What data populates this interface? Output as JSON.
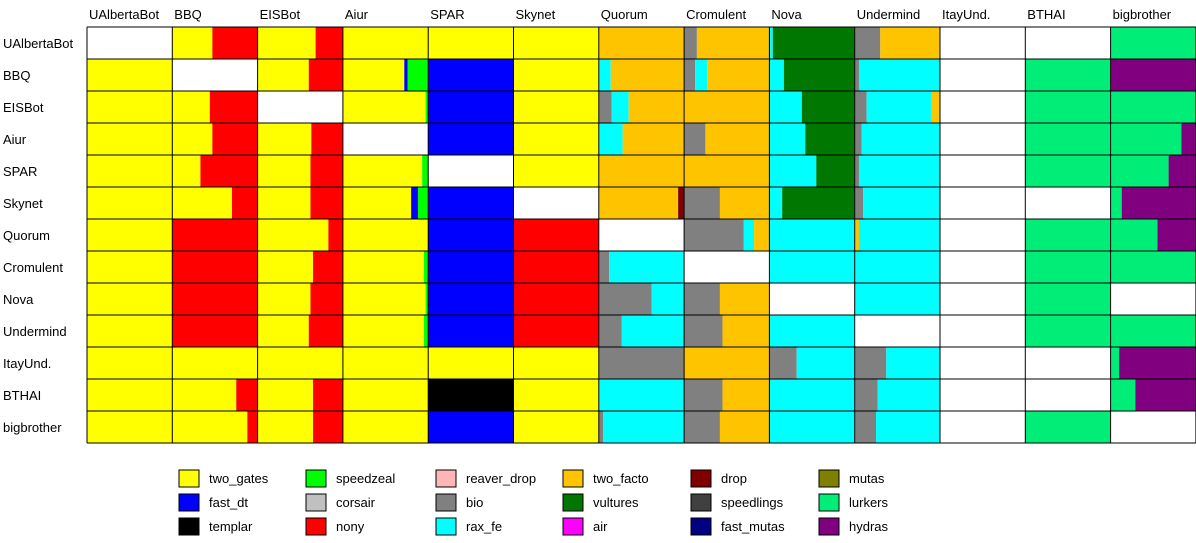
{
  "chart_data": {
    "type": "heatmap",
    "title": "",
    "subtitle": "",
    "xlabel": "",
    "ylabel": "",
    "grid": false,
    "legend_placement": "bottom",
    "bots": [
      "UAlbertaBot",
      "BBQ",
      "EISBot",
      "Aiur",
      "SPAR",
      "Skynet",
      "Quorum",
      "Cromulent",
      "Nova",
      "Undermind",
      "ItayUnd.",
      "BTHAI",
      "bigbrother"
    ],
    "strategies": [
      {
        "name": "two_gates",
        "color": "#ffff00"
      },
      {
        "name": "fast_dt",
        "color": "#0000ff"
      },
      {
        "name": "templar",
        "color": "#000000"
      },
      {
        "name": "speedzeal",
        "color": "#00ff00"
      },
      {
        "name": "corsair",
        "color": "#c0c0c0"
      },
      {
        "name": "nony",
        "color": "#ff0000"
      },
      {
        "name": "reaver_drop",
        "color": "#ffb6b6"
      },
      {
        "name": "bio",
        "color": "#808080"
      },
      {
        "name": "rax_fe",
        "color": "#00ffff"
      },
      {
        "name": "two_facto",
        "color": "#ffc400"
      },
      {
        "name": "vultures",
        "color": "#007800"
      },
      {
        "name": "air",
        "color": "#ff00ff"
      },
      {
        "name": "drop",
        "color": "#800000"
      },
      {
        "name": "speedlings",
        "color": "#404040"
      },
      {
        "name": "fast_mutas",
        "color": "#000080"
      },
      {
        "name": "mutas",
        "color": "#808000"
      },
      {
        "name": "lurkers",
        "color": "#00ee77"
      },
      {
        "name": "hydras",
        "color": "#800080"
      }
    ],
    "cells": {
      "UAlbertaBot": [
        null,
        [
          [
            "two_gates",
            0.47
          ],
          [
            "nony",
            0.53
          ]
        ],
        [
          [
            "two_gates",
            0.68
          ],
          [
            "nony",
            0.32
          ]
        ],
        [
          [
            "two_gates",
            1
          ]
        ],
        [
          [
            "two_gates",
            1
          ]
        ],
        [
          [
            "two_gates",
            1
          ]
        ],
        [
          [
            "two_facto",
            1
          ]
        ],
        [
          [
            "bio",
            0.15
          ],
          [
            "two_facto",
            0.85
          ]
        ],
        [
          [
            "rax_fe",
            0.04
          ],
          [
            "vultures",
            0.96
          ]
        ],
        [
          [
            "bio",
            0.3
          ],
          [
            "two_facto",
            0.7
          ]
        ],
        null,
        null,
        [
          [
            "lurkers",
            1
          ]
        ]
      ],
      "BBQ": [
        [
          [
            "two_gates",
            1
          ]
        ],
        null,
        [
          [
            "two_gates",
            0.6
          ],
          [
            "nony",
            0.4
          ]
        ],
        [
          [
            "two_gates",
            0.72
          ],
          [
            "fast_dt",
            0.04
          ],
          [
            "speedzeal",
            0.24
          ]
        ],
        [
          [
            "fast_dt",
            1
          ]
        ],
        [
          [
            "two_gates",
            1
          ]
        ],
        [
          [
            "rax_fe",
            0.14
          ],
          [
            "two_facto",
            0.86
          ]
        ],
        [
          [
            "bio",
            0.13
          ],
          [
            "rax_fe",
            0.14
          ],
          [
            "two_facto",
            0.73
          ]
        ],
        [
          [
            "rax_fe",
            0.17
          ],
          [
            "vultures",
            0.83
          ]
        ],
        [
          [
            "bio",
            0.05
          ],
          [
            "rax_fe",
            0.95
          ]
        ],
        null,
        [
          [
            "lurkers",
            1
          ]
        ],
        [
          [
            "hydras",
            1
          ]
        ]
      ],
      "EISBot": [
        [
          [
            "two_gates",
            1
          ]
        ],
        [
          [
            "two_gates",
            0.44
          ],
          [
            "nony",
            0.56
          ]
        ],
        null,
        [
          [
            "two_gates",
            0.97
          ],
          [
            "speedzeal",
            0.03
          ]
        ],
        [
          [
            "fast_dt",
            1
          ]
        ],
        [
          [
            "two_gates",
            1
          ]
        ],
        [
          [
            "bio",
            0.15
          ],
          [
            "rax_fe",
            0.2
          ],
          [
            "two_facto",
            0.65
          ]
        ],
        [
          [
            "two_facto",
            1
          ]
        ],
        [
          [
            "rax_fe",
            0.38
          ],
          [
            "vultures",
            0.62
          ]
        ],
        [
          [
            "bio",
            0.14
          ],
          [
            "rax_fe",
            0.76
          ],
          [
            "two_facto",
            0.1
          ]
        ],
        null,
        [
          [
            "lurkers",
            1
          ]
        ],
        [
          [
            "lurkers",
            1
          ]
        ]
      ],
      "Aiur": [
        [
          [
            "two_gates",
            1
          ]
        ],
        [
          [
            "two_gates",
            0.47
          ],
          [
            "nony",
            0.53
          ]
        ],
        [
          [
            "two_gates",
            0.63
          ],
          [
            "nony",
            0.37
          ]
        ],
        null,
        [
          [
            "fast_dt",
            1
          ]
        ],
        [
          [
            "two_gates",
            1
          ]
        ],
        [
          [
            "rax_fe",
            0.28
          ],
          [
            "two_facto",
            0.72
          ]
        ],
        [
          [
            "bio",
            0.25
          ],
          [
            "two_facto",
            0.75
          ]
        ],
        [
          [
            "rax_fe",
            0.42
          ],
          [
            "vultures",
            0.58
          ]
        ],
        [
          [
            "bio",
            0.08
          ],
          [
            "rax_fe",
            0.92
          ]
        ],
        null,
        [
          [
            "lurkers",
            1
          ]
        ],
        [
          [
            "lurkers",
            0.83
          ],
          [
            "hydras",
            0.17
          ]
        ]
      ],
      "SPAR": [
        [
          [
            "two_gates",
            1
          ]
        ],
        [
          [
            "two_gates",
            0.33
          ],
          [
            "nony",
            0.67
          ]
        ],
        [
          [
            "two_gates",
            0.62
          ],
          [
            "nony",
            0.38
          ]
        ],
        [
          [
            "two_gates",
            0.93
          ],
          [
            "speedzeal",
            0.07
          ]
        ],
        null,
        [
          [
            "two_gates",
            1
          ]
        ],
        [
          [
            "two_facto",
            1
          ]
        ],
        [
          [
            "two_facto",
            1
          ]
        ],
        [
          [
            "rax_fe",
            0.55
          ],
          [
            "vultures",
            0.45
          ]
        ],
        [
          [
            "bio",
            0.05
          ],
          [
            "rax_fe",
            0.95
          ]
        ],
        null,
        [
          [
            "lurkers",
            1
          ]
        ],
        [
          [
            "lurkers",
            0.68
          ],
          [
            "hydras",
            0.32
          ]
        ]
      ],
      "Skynet": [
        [
          [
            "two_gates",
            1
          ]
        ],
        [
          [
            "two_gates",
            0.7
          ],
          [
            "nony",
            0.3
          ]
        ],
        [
          [
            "two_gates",
            0.62
          ],
          [
            "nony",
            0.38
          ]
        ],
        [
          [
            "two_gates",
            0.8
          ],
          [
            "fast_dt",
            0.08
          ],
          [
            "speedzeal",
            0.12
          ]
        ],
        [
          [
            "fast_dt",
            1
          ]
        ],
        null,
        [
          [
            "two_facto",
            0.93
          ],
          [
            "drop",
            0.07
          ]
        ],
        [
          [
            "bio",
            0.42
          ],
          [
            "two_facto",
            0.58
          ]
        ],
        [
          [
            "rax_fe",
            0.15
          ],
          [
            "vultures",
            0.85
          ]
        ],
        [
          [
            "bio",
            0.1
          ],
          [
            "rax_fe",
            0.9
          ]
        ],
        null,
        null,
        [
          [
            "lurkers",
            0.13
          ],
          [
            "hydras",
            0.87
          ]
        ]
      ],
      "Quorum": [
        [
          [
            "two_gates",
            1
          ]
        ],
        [
          [
            "nony",
            1
          ]
        ],
        [
          [
            "two_gates",
            0.83
          ],
          [
            "nony",
            0.17
          ]
        ],
        [
          [
            "two_gates",
            1
          ]
        ],
        [
          [
            "fast_dt",
            1
          ]
        ],
        [
          [
            "nony",
            1
          ]
        ],
        null,
        [
          [
            "bio",
            0.7
          ],
          [
            "rax_fe",
            0.12
          ],
          [
            "two_facto",
            0.18
          ]
        ],
        [
          [
            "rax_fe",
            1
          ]
        ],
        [
          [
            "two_facto",
            0.05
          ],
          [
            "rax_fe",
            0.95
          ]
        ],
        null,
        [
          [
            "lurkers",
            1
          ]
        ],
        [
          [
            "lurkers",
            0.55
          ],
          [
            "hydras",
            0.45
          ]
        ]
      ],
      "Cromulent": [
        [
          [
            "two_gates",
            1
          ]
        ],
        [
          [
            "nony",
            1
          ]
        ],
        [
          [
            "two_gates",
            0.65
          ],
          [
            "nony",
            0.35
          ]
        ],
        [
          [
            "two_gates",
            0.95
          ],
          [
            "speedzeal",
            0.05
          ]
        ],
        [
          [
            "fast_dt",
            1
          ]
        ],
        [
          [
            "nony",
            1
          ]
        ],
        [
          [
            "bio",
            0.12
          ],
          [
            "rax_fe",
            0.88
          ]
        ],
        null,
        [
          [
            "rax_fe",
            1
          ]
        ],
        [
          [
            "rax_fe",
            1
          ]
        ],
        null,
        [
          [
            "lurkers",
            1
          ]
        ],
        [
          [
            "lurkers",
            1
          ]
        ]
      ],
      "Nova": [
        [
          [
            "two_gates",
            1
          ]
        ],
        [
          [
            "nony",
            1
          ]
        ],
        [
          [
            "two_gates",
            0.62
          ],
          [
            "nony",
            0.38
          ]
        ],
        [
          [
            "two_gates",
            0.97
          ],
          [
            "speedzeal",
            0.03
          ]
        ],
        [
          [
            "fast_dt",
            1
          ]
        ],
        [
          [
            "nony",
            1
          ]
        ],
        [
          [
            "bio",
            0.62
          ],
          [
            "rax_fe",
            0.38
          ]
        ],
        [
          [
            "bio",
            0.42
          ],
          [
            "two_facto",
            0.58
          ]
        ],
        null,
        [
          [
            "rax_fe",
            1
          ]
        ],
        null,
        [
          [
            "lurkers",
            1
          ]
        ],
        null
      ],
      "Undermind": [
        [
          [
            "two_gates",
            1
          ]
        ],
        [
          [
            "nony",
            1
          ]
        ],
        [
          [
            "two_gates",
            0.6
          ],
          [
            "nony",
            0.4
          ]
        ],
        [
          [
            "two_gates",
            0.95
          ],
          [
            "speedzeal",
            0.05
          ]
        ],
        [
          [
            "fast_dt",
            1
          ]
        ],
        [
          [
            "nony",
            1
          ]
        ],
        [
          [
            "bio",
            0.27
          ],
          [
            "rax_fe",
            0.73
          ]
        ],
        [
          [
            "bio",
            0.45
          ],
          [
            "two_facto",
            0.55
          ]
        ],
        [
          [
            "rax_fe",
            1
          ]
        ],
        null,
        null,
        [
          [
            "lurkers",
            1
          ]
        ],
        [
          [
            "lurkers",
            1
          ]
        ]
      ],
      "ItayUnd.": [
        [
          [
            "two_gates",
            1
          ]
        ],
        [
          [
            "two_gates",
            1
          ]
        ],
        [
          [
            "two_gates",
            1
          ]
        ],
        [
          [
            "two_gates",
            1
          ]
        ],
        [
          [
            "two_gates",
            1
          ]
        ],
        [
          [
            "two_gates",
            1
          ]
        ],
        [
          [
            "bio",
            1
          ]
        ],
        [
          [
            "two_facto",
            1
          ]
        ],
        [
          [
            "bio",
            0.32
          ],
          [
            "rax_fe",
            0.68
          ]
        ],
        [
          [
            "bio",
            0.37
          ],
          [
            "rax_fe",
            0.63
          ]
        ],
        null,
        null,
        [
          [
            "lurkers",
            0.1
          ],
          [
            "hydras",
            0.9
          ]
        ]
      ],
      "BTHAI": [
        [
          [
            "two_gates",
            1
          ]
        ],
        [
          [
            "two_gates",
            0.75
          ],
          [
            "nony",
            0.25
          ]
        ],
        [
          [
            "two_gates",
            0.65
          ],
          [
            "nony",
            0.35
          ]
        ],
        [
          [
            "two_gates",
            1
          ]
        ],
        [
          [
            "templar",
            1
          ]
        ],
        [
          [
            "two_gates",
            1
          ]
        ],
        [
          [
            "rax_fe",
            1
          ]
        ],
        [
          [
            "bio",
            0.45
          ],
          [
            "two_facto",
            0.55
          ]
        ],
        [
          [
            "rax_fe",
            1
          ]
        ],
        [
          [
            "bio",
            0.27
          ],
          [
            "rax_fe",
            0.73
          ]
        ],
        null,
        null,
        [
          [
            "lurkers",
            0.29
          ],
          [
            "hydras",
            0.71
          ]
        ]
      ],
      "bigbrother": [
        [
          [
            "two_gates",
            1
          ]
        ],
        [
          [
            "two_gates",
            0.88
          ],
          [
            "nony",
            0.12
          ]
        ],
        [
          [
            "two_gates",
            0.65
          ],
          [
            "nony",
            0.35
          ]
        ],
        [
          [
            "two_gates",
            1
          ]
        ],
        [
          [
            "fast_dt",
            1
          ]
        ],
        [
          [
            "two_gates",
            1
          ]
        ],
        [
          [
            "bio",
            0.05
          ],
          [
            "rax_fe",
            0.95
          ]
        ],
        [
          [
            "bio",
            0.42
          ],
          [
            "two_facto",
            0.58
          ]
        ],
        [
          [
            "rax_fe",
            1
          ]
        ],
        [
          [
            "bio",
            0.25
          ],
          [
            "rax_fe",
            0.75
          ]
        ],
        null,
        [
          [
            "lurkers",
            1
          ]
        ],
        null
      ]
    }
  }
}
